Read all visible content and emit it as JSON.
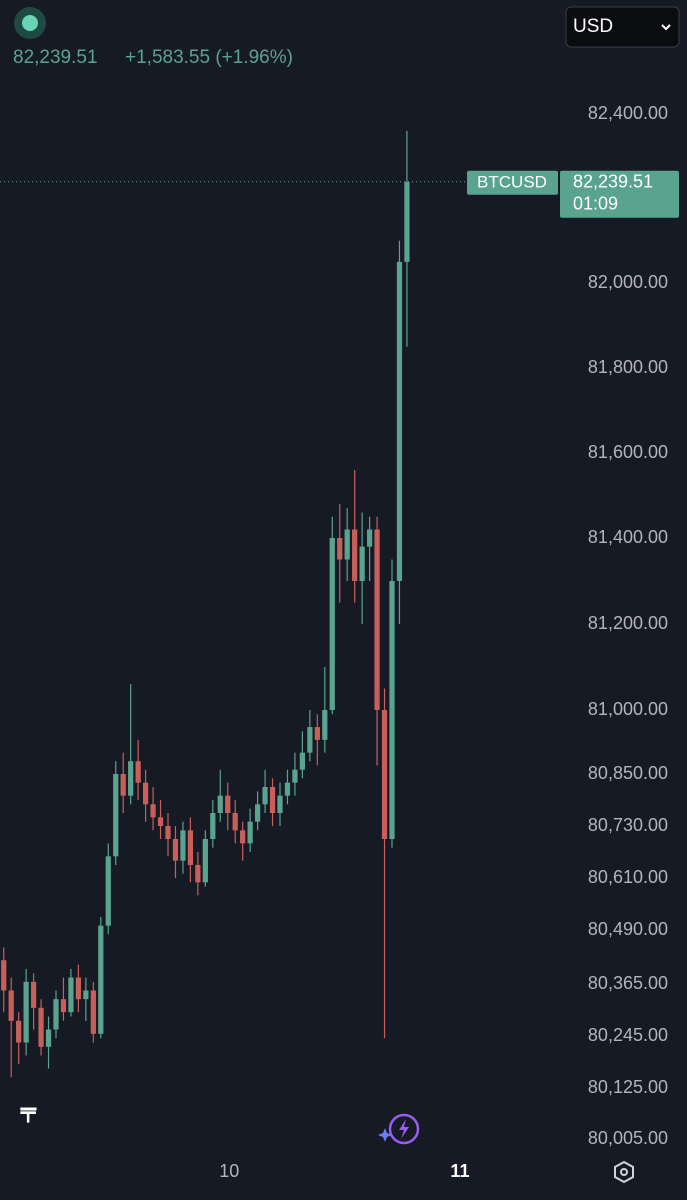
{
  "header": {
    "price": "82,239.51",
    "change": "+1,583.55 (+1.96%)",
    "currency": "USD"
  },
  "chart_data": {
    "type": "candlestick",
    "symbol": "BTCUSD",
    "last_price": {
      "value": 82239.51,
      "label": "82,239.51"
    },
    "countdown": "01:09",
    "up_color": "#5aa38f",
    "down_color": "#c95f5a",
    "yticks": [
      {
        "value": 82400,
        "label": "82,400.00"
      },
      {
        "value": 82000,
        "label": "82,000.00"
      },
      {
        "value": 81800,
        "label": "81,800.00"
      },
      {
        "value": 81600,
        "label": "81,600.00"
      },
      {
        "value": 81400,
        "label": "81,400.00"
      },
      {
        "value": 81200,
        "label": "81,200.00"
      },
      {
        "value": 81000,
        "label": "81,000.00"
      },
      {
        "value": 80850,
        "label": "80,850.00"
      },
      {
        "value": 80730,
        "label": "80,730.00"
      },
      {
        "value": 80610,
        "label": "80,610.00"
      },
      {
        "value": 80490,
        "label": "80,490.00"
      },
      {
        "value": 80365,
        "label": "80,365.00"
      },
      {
        "value": 80245,
        "label": "80,245.00"
      },
      {
        "value": 80125,
        "label": "80,125.00"
      },
      {
        "value": 80005,
        "label": "80,005.00"
      }
    ],
    "xlim": [
      0,
      75
    ],
    "xticks": [
      {
        "value": 30.7,
        "label": "10"
      },
      {
        "value": 61.6,
        "label": "11"
      }
    ],
    "open": [
      80420,
      80350,
      80280,
      80230,
      80370,
      80310,
      80220,
      80260,
      80330,
      80300,
      80380,
      80330,
      80350,
      80250,
      80500,
      80660,
      80850,
      80800,
      80880,
      80830,
      80780,
      80750,
      80730,
      80700,
      80650,
      80720,
      80640,
      80600,
      80700,
      80760,
      80800,
      80760,
      80720,
      80690,
      80740,
      80780,
      80820,
      80760,
      80800,
      80830,
      80860,
      80900,
      80960,
      80930,
      81000,
      81400,
      81350,
      81420,
      81300,
      81380,
      81420,
      81000,
      80700,
      81300,
      82050
    ],
    "high": [
      80450,
      80380,
      80300,
      80400,
      80390,
      80330,
      80290,
      80350,
      80380,
      80400,
      80410,
      80380,
      80370,
      80520,
      80690,
      80880,
      80900,
      81060,
      80930,
      80860,
      80820,
      80790,
      80760,
      80730,
      80740,
      80750,
      80670,
      80720,
      80790,
      80860,
      80830,
      80790,
      80740,
      80770,
      80810,
      80860,
      80840,
      80830,
      80860,
      80900,
      80950,
      81000,
      80990,
      81100,
      81450,
      81480,
      81470,
      81560,
      81460,
      81450,
      81450,
      81050,
      81350,
      82100,
      82360
    ],
    "low": [
      80300,
      80150,
      80180,
      80200,
      80260,
      80200,
      80170,
      80240,
      80280,
      80290,
      80300,
      80280,
      80230,
      80240,
      80480,
      80640,
      80760,
      80780,
      80790,
      80740,
      80720,
      80700,
      80660,
      80610,
      80620,
      80600,
      80570,
      80590,
      80680,
      80740,
      80720,
      80690,
      80650,
      80670,
      80720,
      80760,
      80730,
      80730,
      80780,
      80800,
      80840,
      80880,
      80870,
      80900,
      80990,
      81250,
      81300,
      81250,
      81200,
      81300,
      80870,
      80240,
      80680,
      81200,
      81850
    ],
    "close": [
      80350,
      80280,
      80230,
      80370,
      80310,
      80220,
      80260,
      80330,
      80300,
      80380,
      80330,
      80350,
      80250,
      80500,
      80660,
      80850,
      80800,
      80880,
      80830,
      80780,
      80750,
      80730,
      80700,
      80650,
      80720,
      80640,
      80600,
      80700,
      80760,
      80800,
      80760,
      80720,
      80690,
      80740,
      80780,
      80820,
      80760,
      80800,
      80830,
      80860,
      80900,
      80960,
      80930,
      81000,
      81400,
      81350,
      81420,
      81300,
      81380,
      81420,
      81000,
      80700,
      81300,
      82050,
      82239.51
    ]
  }
}
